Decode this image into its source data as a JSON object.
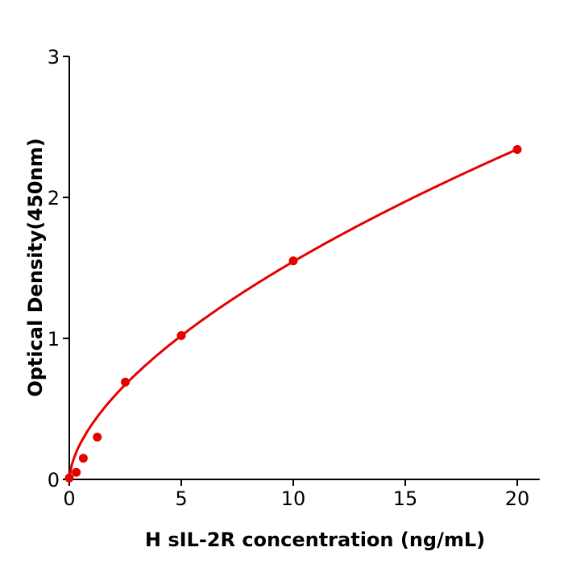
{
  "chart_data": {
    "type": "scatter",
    "title": "",
    "xlabel": "H  sIL-2R concentration (ng/mL)",
    "ylabel": "Optical Density(450nm)",
    "xlim": [
      0,
      21
    ],
    "ylim": [
      0,
      3
    ],
    "xticks": [
      "0",
      "5",
      "10",
      "15",
      "20"
    ],
    "yticks": [
      "0",
      "1",
      "2",
      "3"
    ],
    "grid": false,
    "color": "#e60000",
    "points": [
      {
        "x": 0,
        "y": 0.01
      },
      {
        "x": 0.312,
        "y": 0.05
      },
      {
        "x": 0.625,
        "y": 0.15
      },
      {
        "x": 1.25,
        "y": 0.3
      },
      {
        "x": 2.5,
        "y": 0.69
      },
      {
        "x": 5,
        "y": 1.02
      },
      {
        "x": 10,
        "y": 1.55
      },
      {
        "x": 20,
        "y": 2.34
      }
    ],
    "fit_line": "smooth standard curve through points"
  }
}
